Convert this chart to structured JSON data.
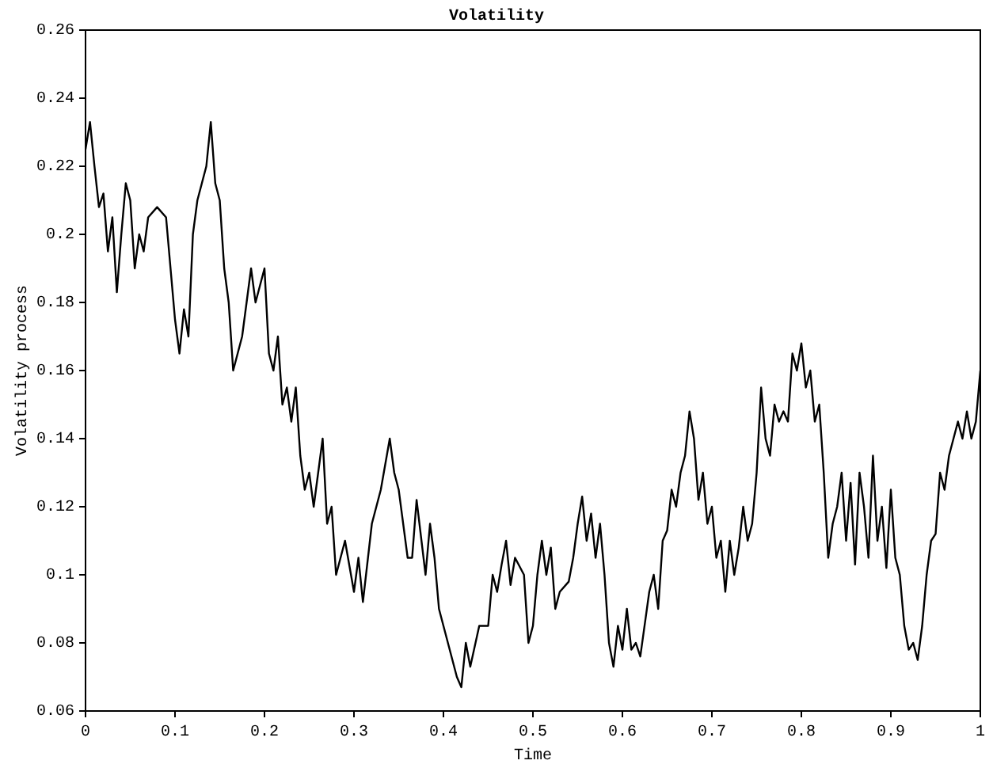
{
  "chart_data": {
    "type": "line",
    "title": "Volatility",
    "xlabel": "Time",
    "ylabel": "Volatility process",
    "x": [
      0,
      0.005,
      0.01,
      0.015,
      0.02,
      0.025,
      0.03,
      0.035,
      0.04,
      0.045,
      0.05,
      0.055,
      0.06,
      0.065,
      0.07,
      0.08,
      0.09,
      0.1,
      0.105,
      0.11,
      0.115,
      0.12,
      0.125,
      0.13,
      0.135,
      0.14,
      0.145,
      0.15,
      0.155,
      0.16,
      0.165,
      0.17,
      0.175,
      0.18,
      0.185,
      0.19,
      0.195,
      0.2,
      0.205,
      0.21,
      0.215,
      0.22,
      0.225,
      0.23,
      0.235,
      0.24,
      0.245,
      0.25,
      0.255,
      0.26,
      0.265,
      0.27,
      0.275,
      0.28,
      0.29,
      0.3,
      0.305,
      0.31,
      0.32,
      0.33,
      0.34,
      0.345,
      0.35,
      0.36,
      0.365,
      0.37,
      0.38,
      0.385,
      0.39,
      0.395,
      0.4,
      0.41,
      0.415,
      0.42,
      0.425,
      0.43,
      0.44,
      0.45,
      0.455,
      0.46,
      0.465,
      0.47,
      0.475,
      0.48,
      0.49,
      0.495,
      0.5,
      0.505,
      0.51,
      0.515,
      0.52,
      0.525,
      0.53,
      0.54,
      0.545,
      0.55,
      0.555,
      0.56,
      0.565,
      0.57,
      0.575,
      0.58,
      0.585,
      0.59,
      0.595,
      0.6,
      0.605,
      0.61,
      0.615,
      0.62,
      0.63,
      0.635,
      0.64,
      0.645,
      0.65,
      0.655,
      0.66,
      0.665,
      0.67,
      0.675,
      0.68,
      0.685,
      0.69,
      0.695,
      0.7,
      0.705,
      0.71,
      0.715,
      0.72,
      0.725,
      0.73,
      0.735,
      0.74,
      0.745,
      0.75,
      0.755,
      0.76,
      0.765,
      0.77,
      0.775,
      0.78,
      0.785,
      0.79,
      0.795,
      0.8,
      0.805,
      0.81,
      0.815,
      0.82,
      0.825,
      0.83,
      0.835,
      0.84,
      0.845,
      0.85,
      0.855,
      0.86,
      0.865,
      0.87,
      0.875,
      0.88,
      0.885,
      0.89,
      0.895,
      0.9,
      0.905,
      0.91,
      0.915,
      0.92,
      0.925,
      0.93,
      0.935,
      0.94,
      0.945,
      0.95,
      0.955,
      0.96,
      0.965,
      0.97,
      0.975,
      0.98,
      0.985,
      0.99,
      0.995,
      1
    ],
    "series": [
      {
        "color": "#000000",
        "values": [
          0.225,
          0.233,
          0.22,
          0.208,
          0.212,
          0.195,
          0.205,
          0.183,
          0.2,
          0.215,
          0.21,
          0.19,
          0.2,
          0.195,
          0.205,
          0.208,
          0.205,
          0.175,
          0.165,
          0.178,
          0.17,
          0.2,
          0.21,
          0.215,
          0.22,
          0.233,
          0.215,
          0.21,
          0.19,
          0.18,
          0.16,
          0.165,
          0.17,
          0.18,
          0.19,
          0.18,
          0.185,
          0.19,
          0.165,
          0.16,
          0.17,
          0.15,
          0.155,
          0.145,
          0.155,
          0.135,
          0.125,
          0.13,
          0.12,
          0.13,
          0.14,
          0.115,
          0.12,
          0.1,
          0.11,
          0.095,
          0.105,
          0.092,
          0.115,
          0.125,
          0.14,
          0.13,
          0.125,
          0.105,
          0.105,
          0.122,
          0.1,
          0.115,
          0.105,
          0.09,
          0.085,
          0.075,
          0.07,
          0.067,
          0.08,
          0.073,
          0.085,
          0.085,
          0.1,
          0.095,
          0.103,
          0.11,
          0.097,
          0.105,
          0.1,
          0.08,
          0.085,
          0.1,
          0.11,
          0.1,
          0.108,
          0.09,
          0.095,
          0.098,
          0.105,
          0.115,
          0.123,
          0.11,
          0.118,
          0.105,
          0.115,
          0.1,
          0.08,
          0.073,
          0.085,
          0.078,
          0.09,
          0.078,
          0.08,
          0.076,
          0.095,
          0.1,
          0.09,
          0.11,
          0.113,
          0.125,
          0.12,
          0.13,
          0.135,
          0.148,
          0.14,
          0.122,
          0.13,
          0.115,
          0.12,
          0.105,
          0.11,
          0.095,
          0.11,
          0.1,
          0.108,
          0.12,
          0.11,
          0.115,
          0.13,
          0.155,
          0.14,
          0.135,
          0.15,
          0.145,
          0.148,
          0.145,
          0.165,
          0.16,
          0.168,
          0.155,
          0.16,
          0.145,
          0.15,
          0.13,
          0.105,
          0.115,
          0.12,
          0.13,
          0.11,
          0.127,
          0.103,
          0.13,
          0.12,
          0.105,
          0.135,
          0.11,
          0.12,
          0.102,
          0.125,
          0.105,
          0.1,
          0.085,
          0.078,
          0.08,
          0.075,
          0.085,
          0.1,
          0.11,
          0.112,
          0.13,
          0.125,
          0.135,
          0.14,
          0.145,
          0.14,
          0.148,
          0.14,
          0.145,
          0.16
        ]
      }
    ],
    "xlim": [
      0,
      1
    ],
    "xticks": [
      0,
      0.1,
      0.2,
      0.3,
      0.4,
      0.5,
      0.6,
      0.7,
      0.8,
      0.9,
      1
    ],
    "ylim": [
      0.06,
      0.26
    ],
    "yticks": [
      0.06,
      0.08,
      0.1,
      0.12,
      0.14,
      0.16,
      0.18,
      0.2,
      0.22,
      0.24,
      0.26
    ],
    "grid": false,
    "legend": false,
    "marker": "none",
    "line_style": "solid"
  }
}
